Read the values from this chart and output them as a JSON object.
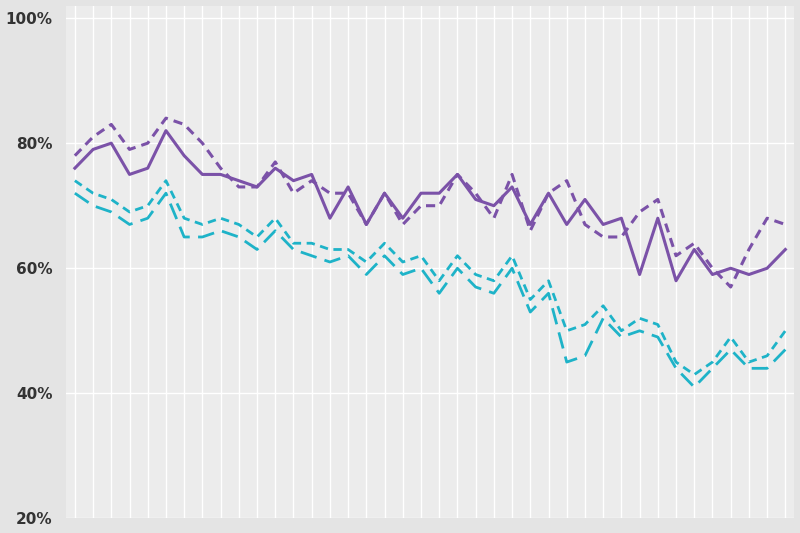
{
  "purple_solid": [
    76,
    79,
    80,
    75,
    76,
    82,
    78,
    75,
    75,
    74,
    73,
    76,
    74,
    75,
    68,
    73,
    67,
    72,
    68,
    72,
    72,
    75,
    71,
    70,
    73,
    67,
    72,
    67,
    71,
    67,
    68,
    59,
    68,
    58,
    63,
    59,
    60,
    59,
    60,
    63
  ],
  "purple_dotted": [
    78,
    81,
    83,
    79,
    80,
    84,
    83,
    80,
    76,
    73,
    73,
    77,
    72,
    74,
    72,
    72,
    67,
    72,
    67,
    70,
    70,
    75,
    72,
    68,
    75,
    66,
    72,
    74,
    67,
    65,
    65,
    69,
    71,
    62,
    64,
    60,
    57,
    63,
    68,
    67
  ],
  "cyan_dashed": [
    72,
    70,
    69,
    67,
    68,
    72,
    65,
    65,
    66,
    65,
    63,
    66,
    63,
    62,
    61,
    62,
    59,
    62,
    59,
    60,
    56,
    60,
    57,
    56,
    60,
    53,
    56,
    45,
    46,
    52,
    49,
    50,
    49,
    44,
    41,
    44,
    47,
    44,
    44,
    47
  ],
  "cyan_dotted": [
    74,
    72,
    71,
    69,
    70,
    74,
    68,
    67,
    68,
    67,
    65,
    68,
    64,
    64,
    63,
    63,
    61,
    64,
    61,
    62,
    58,
    62,
    59,
    58,
    62,
    55,
    58,
    50,
    51,
    54,
    50,
    52,
    51,
    45,
    43,
    45,
    49,
    45,
    46,
    50
  ],
  "purple_color": "#7b52a8",
  "cyan_color": "#1eb3c8",
  "bg_color": "#e4e4e4",
  "plot_bg_color": "#ececec",
  "grid_color": "#ffffff",
  "ylim": [
    20,
    102
  ],
  "yticks": [
    20,
    40,
    60,
    80,
    100
  ],
  "ytick_labels": [
    "20%",
    "40%",
    "60%",
    "80%",
    "100%"
  ],
  "n_points": 40
}
